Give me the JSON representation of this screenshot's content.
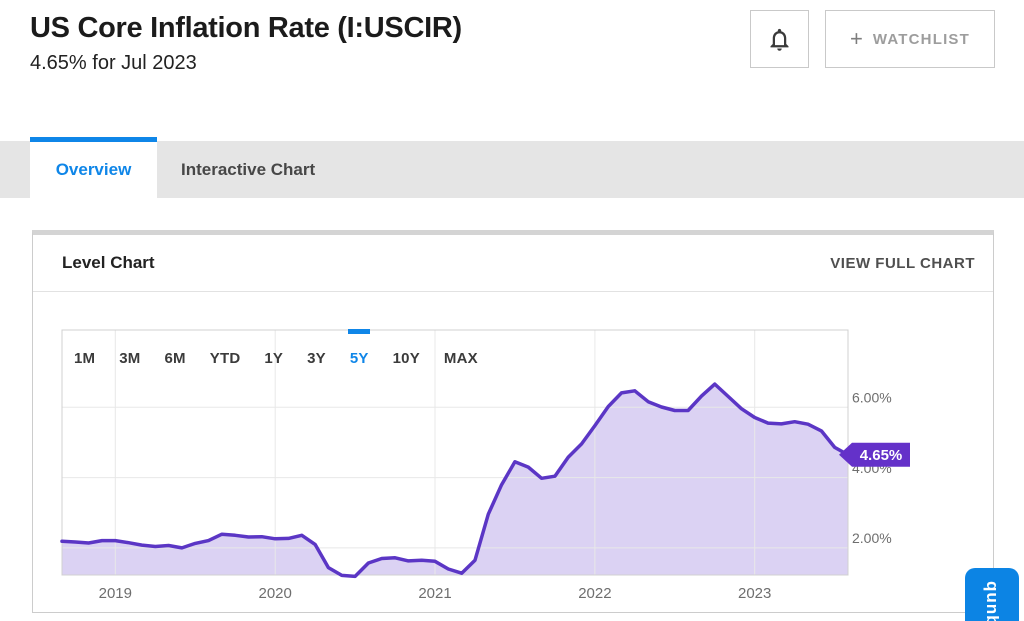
{
  "header": {
    "title": "US Core Inflation Rate (I:USCIR)",
    "subtitle": "4.65% for Jul 2023",
    "plus_icon": "+",
    "watchlist_label": "WATCHLIST"
  },
  "tabs": [
    {
      "label": "Overview",
      "active": true
    },
    {
      "label": "Interactive Chart",
      "active": false
    }
  ],
  "card": {
    "title": "Level Chart",
    "view_full_chart_label": "VIEW FULL CHART"
  },
  "branding": {
    "label": "qunb"
  },
  "colors": {
    "accent_blue": "#0f86e8",
    "line_purple": "#5b36c5",
    "fill_purple": "#dbd2f3",
    "badge_purple": "#6431c9",
    "gridline": "#e8e8e8",
    "plot_border": "#d0d0d0",
    "axis_label": "#6e6e6e"
  },
  "chart_data": {
    "type": "area",
    "title": "US Core Inflation Rate level chart, 5 year range",
    "unit": "%",
    "range_buttons": [
      "1M",
      "3M",
      "6M",
      "YTD",
      "1Y",
      "3Y",
      "5Y",
      "10Y",
      "MAX"
    ],
    "active_range": "5Y",
    "x_tick_labels": [
      "2019",
      "2020",
      "2021",
      "2022",
      "2023"
    ],
    "y_tick_labels": [
      "2.00%",
      "4.00%",
      "6.00%"
    ],
    "y_tick_values": [
      2,
      4,
      6
    ],
    "ylim": [
      1.23,
      8.2
    ],
    "grid": true,
    "legend": false,
    "last_point": {
      "label": "4.65%",
      "date": "Jul 2023",
      "value": 4.65
    },
    "series": [
      {
        "name": "US Core Inflation Rate",
        "x": [
          "2018-08",
          "2018-09",
          "2018-10",
          "2018-11",
          "2018-12",
          "2019-01",
          "2019-02",
          "2019-03",
          "2019-04",
          "2019-05",
          "2019-06",
          "2019-07",
          "2019-08",
          "2019-09",
          "2019-10",
          "2019-11",
          "2019-12",
          "2020-01",
          "2020-02",
          "2020-03",
          "2020-04",
          "2020-05",
          "2020-06",
          "2020-07",
          "2020-08",
          "2020-09",
          "2020-10",
          "2020-11",
          "2020-12",
          "2021-01",
          "2021-02",
          "2021-03",
          "2021-04",
          "2021-05",
          "2021-06",
          "2021-07",
          "2021-08",
          "2021-09",
          "2021-10",
          "2021-11",
          "2021-12",
          "2022-01",
          "2022-02",
          "2022-03",
          "2022-04",
          "2022-05",
          "2022-06",
          "2022-07",
          "2022-08",
          "2022-09",
          "2022-10",
          "2022-11",
          "2022-12",
          "2023-01",
          "2023-02",
          "2023-03",
          "2023-04",
          "2023-05",
          "2023-06",
          "2023-07"
        ],
        "values": [
          2.19,
          2.17,
          2.14,
          2.21,
          2.21,
          2.15,
          2.08,
          2.04,
          2.07,
          2.0,
          2.13,
          2.21,
          2.39,
          2.36,
          2.31,
          2.32,
          2.26,
          2.27,
          2.36,
          2.1,
          1.44,
          1.22,
          1.19,
          1.57,
          1.7,
          1.72,
          1.63,
          1.65,
          1.62,
          1.4,
          1.28,
          1.65,
          2.96,
          3.8,
          4.45,
          4.3,
          3.98,
          4.04,
          4.58,
          4.96,
          5.48,
          6.02,
          6.41,
          6.47,
          6.16,
          6.01,
          5.91,
          5.91,
          6.32,
          6.66,
          6.31,
          5.96,
          5.71,
          5.55,
          5.53,
          5.59,
          5.52,
          5.33,
          4.86,
          4.65
        ]
      }
    ]
  }
}
